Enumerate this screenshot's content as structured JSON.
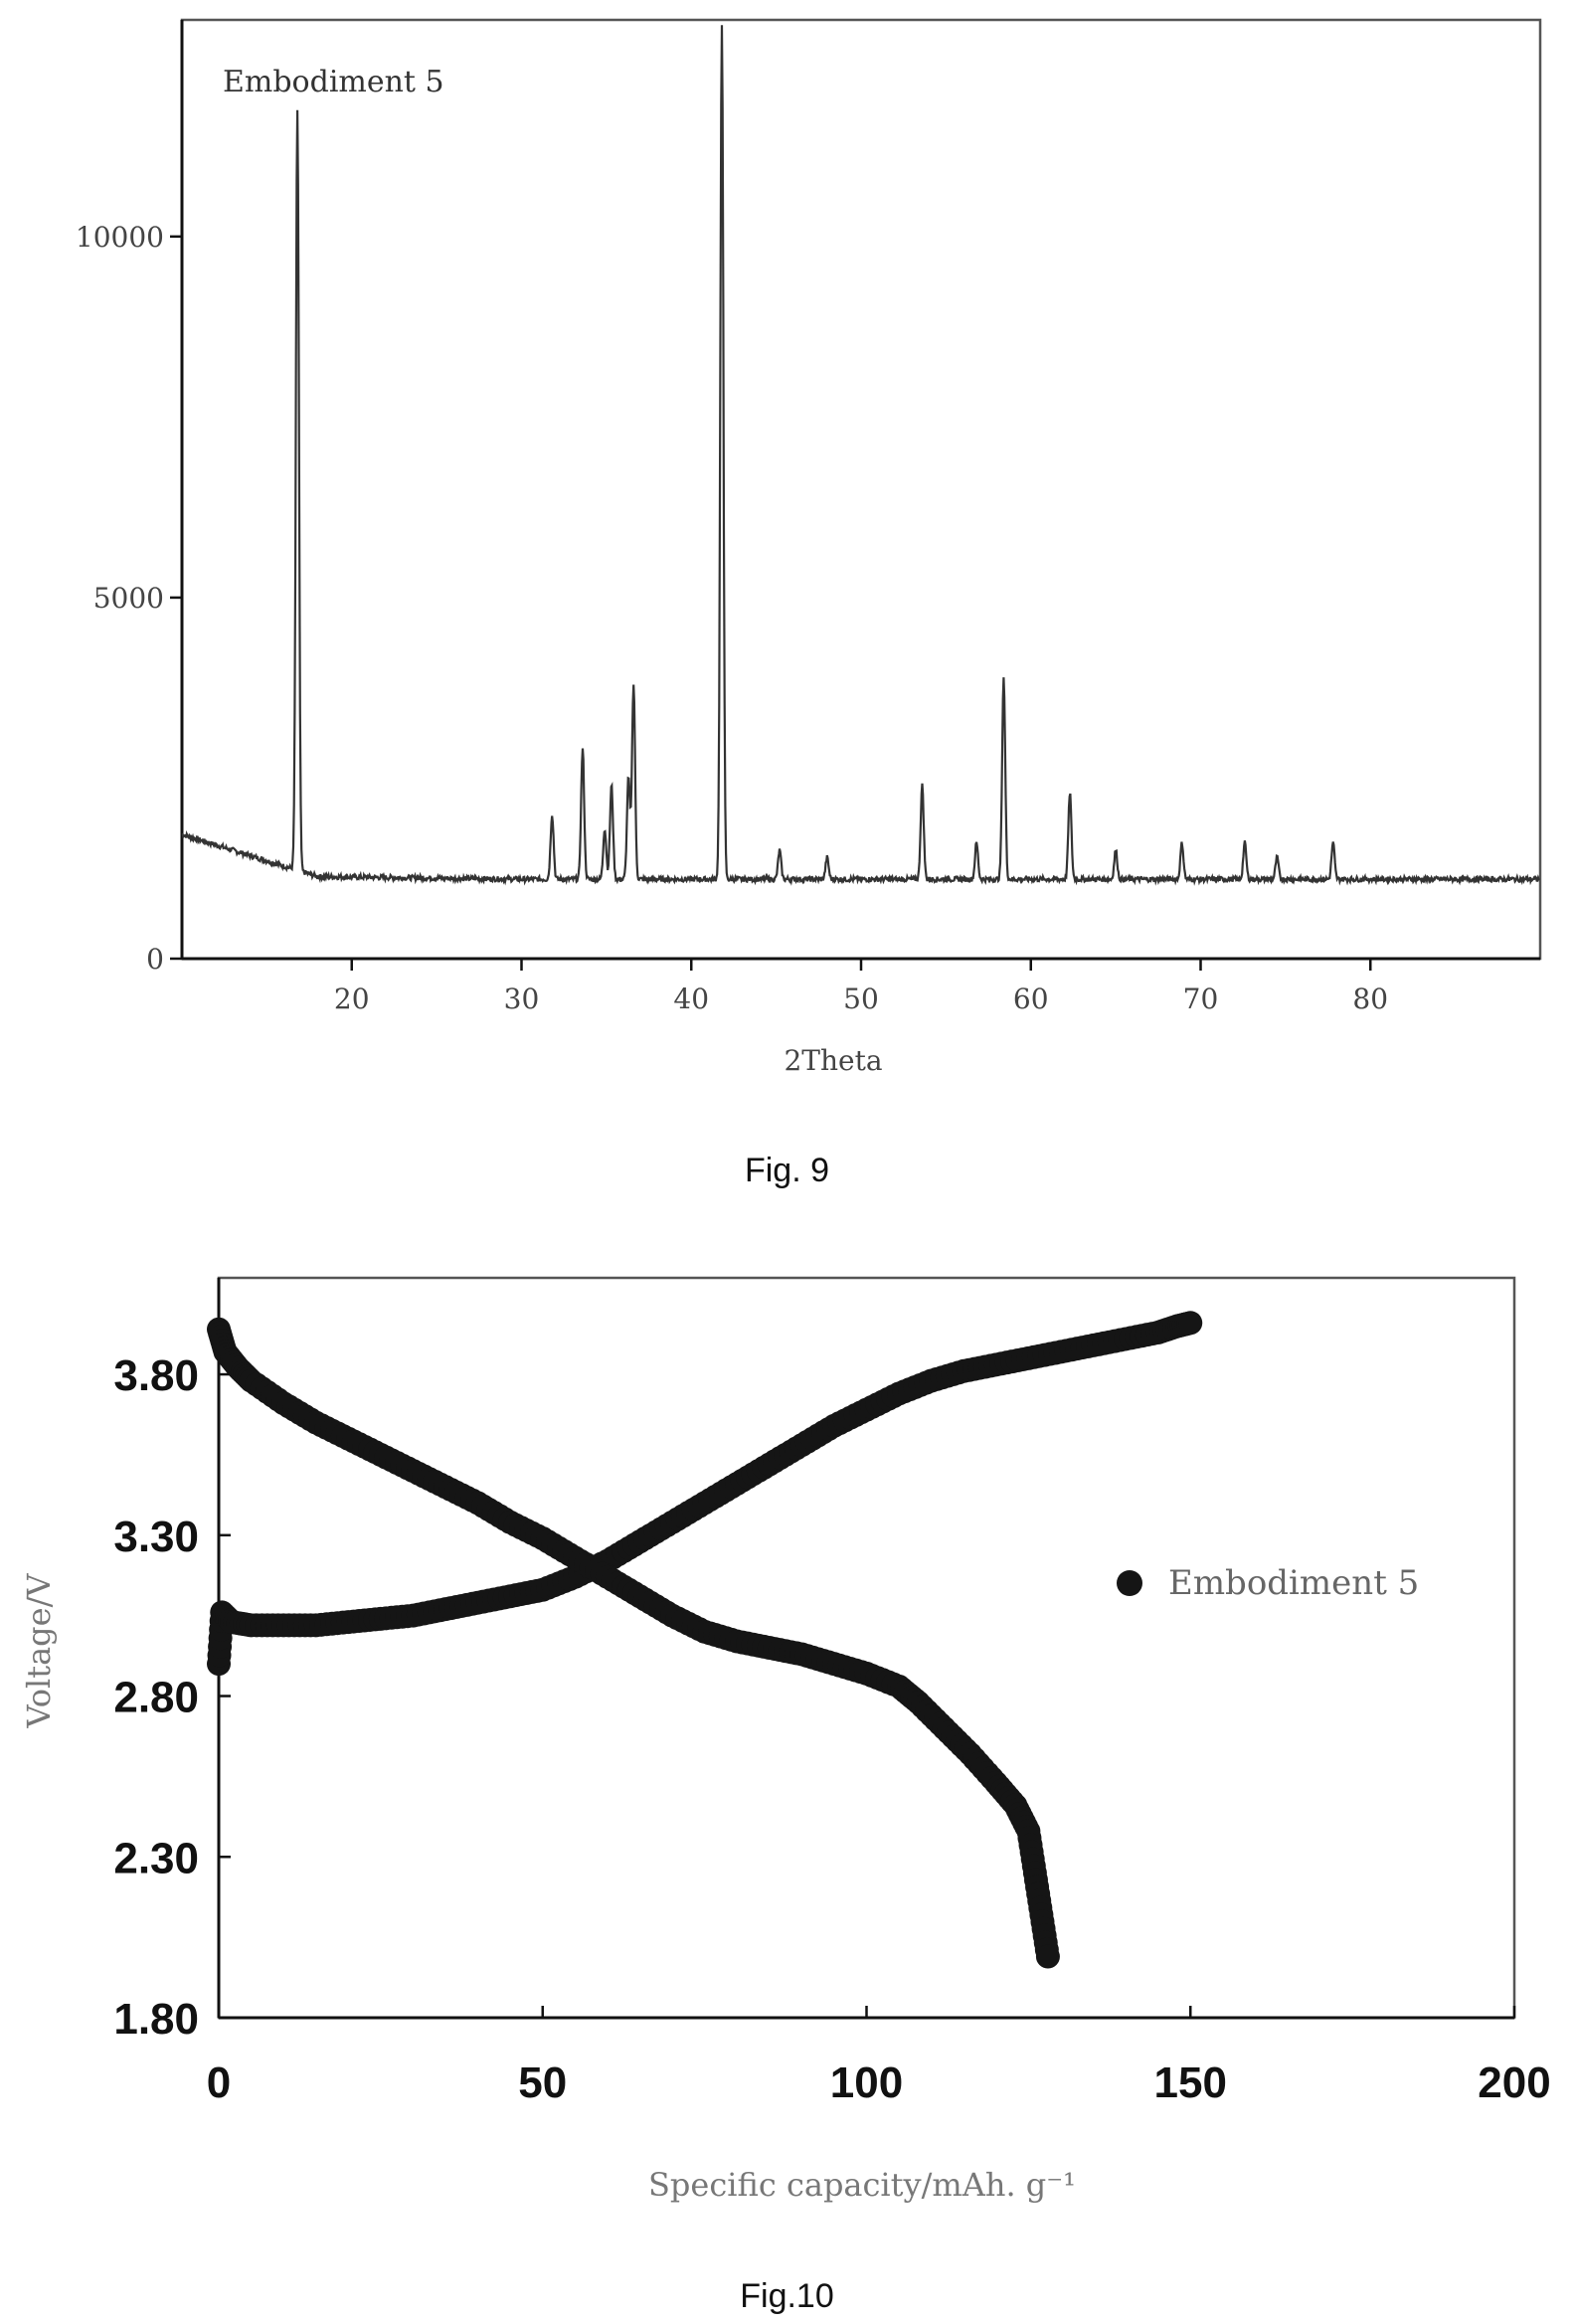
{
  "figures": {
    "fig9": {
      "caption": "Fig. 9"
    },
    "fig10": {
      "caption": "Fig.10"
    }
  },
  "chart_data": [
    {
      "type": "line",
      "title": "Embodiment 5",
      "xlabel": "2Theta",
      "ylabel": "",
      "xlim": [
        10,
        90
      ],
      "ylim": [
        0,
        13000
      ],
      "x_ticks": [
        20,
        30,
        40,
        50,
        60,
        70,
        80
      ],
      "y_ticks": [
        0,
        5000,
        10000
      ],
      "grid": false,
      "background": 1100,
      "peaks": [
        {
          "x": 16.8,
          "y": 11600
        },
        {
          "x": 31.8,
          "y": 2000
        },
        {
          "x": 33.6,
          "y": 2900
        },
        {
          "x": 34.9,
          "y": 1800
        },
        {
          "x": 35.3,
          "y": 2400
        },
        {
          "x": 36.3,
          "y": 2500
        },
        {
          "x": 36.6,
          "y": 3800
        },
        {
          "x": 41.8,
          "y": 12900
        },
        {
          "x": 45.2,
          "y": 1500
        },
        {
          "x": 48.0,
          "y": 1400
        },
        {
          "x": 53.6,
          "y": 2400
        },
        {
          "x": 56.8,
          "y": 1600
        },
        {
          "x": 58.4,
          "y": 3900
        },
        {
          "x": 62.3,
          "y": 2300
        },
        {
          "x": 65.0,
          "y": 1500
        },
        {
          "x": 68.9,
          "y": 1600
        },
        {
          "x": 72.6,
          "y": 1600
        },
        {
          "x": 74.5,
          "y": 1400
        },
        {
          "x": 77.8,
          "y": 1600
        }
      ]
    },
    {
      "type": "scatter",
      "title": "",
      "xlabel": "Specific capacity/mAh. g⁻¹",
      "ylabel": "Voltage/V",
      "xlim": [
        0,
        200
      ],
      "ylim": [
        1.8,
        4.1
      ],
      "x_ticks": [
        "0",
        "50",
        "100",
        "150",
        "200"
      ],
      "y_ticks": [
        "1.80",
        "2.30",
        "2.80",
        "3.30",
        "3.80"
      ],
      "grid": false,
      "legend": {
        "position": "right",
        "marker": "filled-circle"
      },
      "series": [
        {
          "name": "Embodiment 5",
          "role": "charge",
          "x": [
            0,
            0.5,
            2,
            5,
            10,
            15,
            20,
            25,
            30,
            35,
            40,
            45,
            50,
            55,
            60,
            65,
            70,
            75,
            80,
            85,
            90,
            95,
            100,
            105,
            110,
            115,
            120,
            125,
            130,
            135,
            140,
            145,
            148,
            150
          ],
          "y": [
            2.9,
            3.06,
            3.03,
            3.02,
            3.02,
            3.02,
            3.03,
            3.04,
            3.05,
            3.07,
            3.09,
            3.11,
            3.13,
            3.17,
            3.22,
            3.28,
            3.34,
            3.4,
            3.46,
            3.52,
            3.58,
            3.64,
            3.69,
            3.74,
            3.78,
            3.81,
            3.83,
            3.85,
            3.87,
            3.89,
            3.91,
            3.93,
            3.95,
            3.96
          ]
        },
        {
          "name": "Embodiment 5",
          "role": "discharge",
          "x": [
            0,
            1,
            3,
            5,
            10,
            15,
            20,
            25,
            30,
            35,
            40,
            45,
            50,
            55,
            60,
            65,
            70,
            75,
            80,
            85,
            90,
            95,
            100,
            105,
            108,
            112,
            116,
            120,
            123,
            125,
            126,
            127,
            128
          ],
          "y": [
            3.94,
            3.87,
            3.82,
            3.78,
            3.71,
            3.65,
            3.6,
            3.55,
            3.5,
            3.45,
            3.4,
            3.34,
            3.29,
            3.23,
            3.17,
            3.11,
            3.05,
            3.0,
            2.97,
            2.95,
            2.93,
            2.9,
            2.87,
            2.83,
            2.78,
            2.7,
            2.62,
            2.53,
            2.46,
            2.38,
            2.25,
            2.12,
            1.99
          ]
        }
      ]
    }
  ]
}
